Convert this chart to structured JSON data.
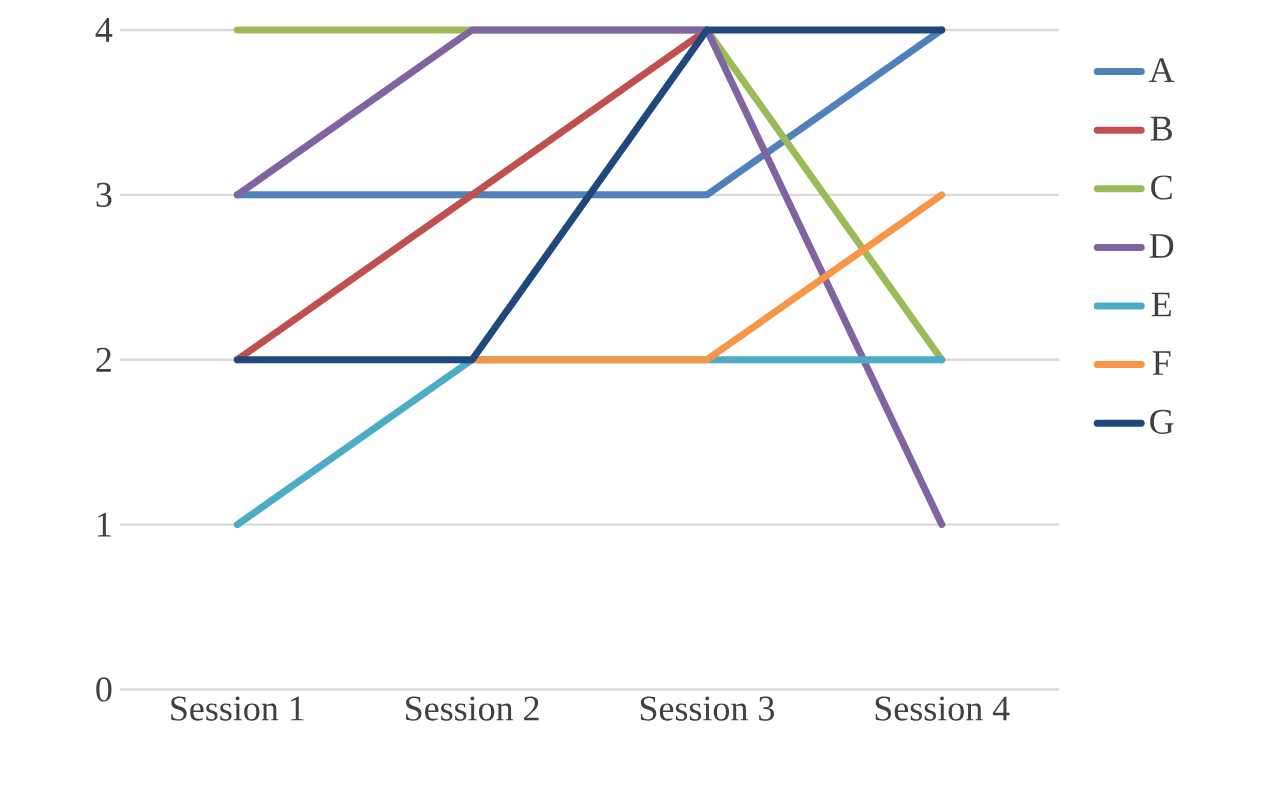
{
  "chart_data": {
    "type": "line",
    "categories": [
      "Session 1",
      "Session 2",
      "Session 3",
      "Session 4"
    ],
    "series": [
      {
        "name": "A",
        "color": "#4f81bd",
        "values": [
          3,
          3,
          3,
          4
        ]
      },
      {
        "name": "B",
        "color": "#c0504d",
        "values": [
          2,
          3,
          4,
          null
        ]
      },
      {
        "name": "C",
        "color": "#9bbb59",
        "values": [
          4,
          4,
          4,
          2
        ]
      },
      {
        "name": "D",
        "color": "#8064a2",
        "values": [
          3,
          4,
          4,
          1
        ]
      },
      {
        "name": "E",
        "color": "#4bacc6",
        "values": [
          1,
          2,
          2,
          2
        ]
      },
      {
        "name": "F",
        "color": "#f79646",
        "values": [
          null,
          2,
          2,
          3
        ]
      },
      {
        "name": "G",
        "color": "#1f497d",
        "values": [
          2,
          2,
          4,
          4
        ]
      }
    ],
    "ylim": [
      0,
      4
    ],
    "yticks": [
      0,
      1,
      2,
      3,
      4
    ],
    "grid": "y",
    "legend": "right",
    "marker": "none",
    "line_style": "solid"
  }
}
